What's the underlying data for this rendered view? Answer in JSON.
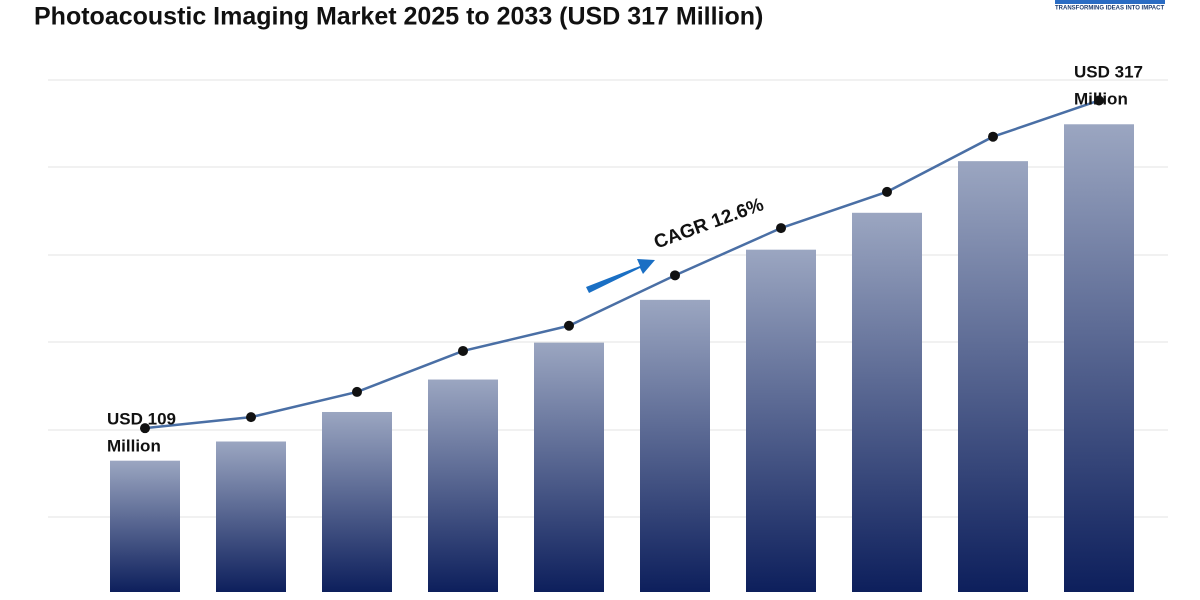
{
  "chart_data": {
    "type": "bar",
    "title": "Photoacoustic Imaging Market 2025 to 2033 (USD 317 Million)",
    "logo_tagline": "TRANSFORMING IDEAS INTO IMPACT",
    "categories": [
      null,
      null,
      null,
      null,
      null,
      null,
      null,
      null,
      null,
      null
    ],
    "series": [
      {
        "type": "bar",
        "color": "#0d1f5c",
        "values": [
          89,
          102,
          122,
          144,
          169,
          198,
          232,
          257,
          292,
          317
        ]
      },
      {
        "type": "line",
        "axis": "y2",
        "color": "#4a6fa5",
        "values": [
          109,
          116,
          132,
          158,
          174,
          206,
          236,
          259,
          294,
          317
        ]
      }
    ],
    "ylim": [
      0,
      347
    ],
    "y2lim": [
      5,
      330
    ],
    "annotations": [
      "USD 109",
      "Million",
      "USD 317",
      "Million",
      "CAGR 12.6%"
    ]
  }
}
